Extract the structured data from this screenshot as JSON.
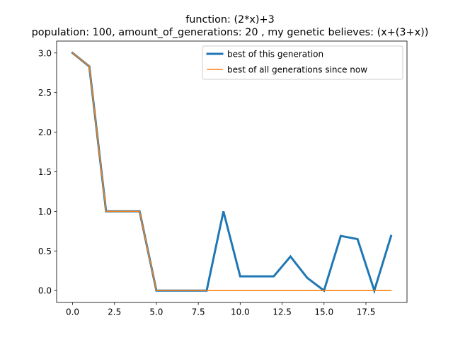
{
  "chart_data": {
    "type": "line",
    "title": "function:  (2*x)+3",
    "subtitle": "population: 100, amount_of_generations: 20 , my genetic believes: (x+(3+x))",
    "xlabel": "",
    "ylabel": "",
    "xlim": [
      -0.95,
      19.95
    ],
    "ylim": [
      -0.15,
      3.15
    ],
    "xticks": [
      0.0,
      2.5,
      5.0,
      7.5,
      10.0,
      12.5,
      15.0,
      17.5
    ],
    "xtick_labels": [
      "0.0",
      "2.5",
      "5.0",
      "7.5",
      "10.0",
      "12.5",
      "15.0",
      "17.5"
    ],
    "yticks": [
      0.0,
      0.5,
      1.0,
      1.5,
      2.0,
      2.5,
      3.0
    ],
    "ytick_labels": [
      "0.0",
      "0.5",
      "1.0",
      "1.5",
      "2.0",
      "2.5",
      "3.0"
    ],
    "grid": false,
    "legend_position": "top-right",
    "x": [
      0,
      1,
      2,
      3,
      4,
      5,
      6,
      7,
      8,
      9,
      10,
      11,
      12,
      13,
      14,
      15,
      16,
      17,
      18,
      19
    ],
    "series": [
      {
        "name": "best of this generation",
        "color": "#1f77b4",
        "style": "thick",
        "values": [
          3.0,
          2.83,
          1.0,
          1.0,
          1.0,
          0.0,
          0.0,
          0.0,
          0.0,
          1.0,
          0.18,
          0.18,
          0.18,
          0.43,
          0.16,
          0.0,
          0.69,
          0.65,
          0.0,
          0.69
        ]
      },
      {
        "name": "best of all generations since now",
        "color": "#ff7f0e",
        "style": "thin",
        "values": [
          3.0,
          2.83,
          1.0,
          1.0,
          1.0,
          0.0,
          0.0,
          0.0,
          0.0,
          0.0,
          0.0,
          0.0,
          0.0,
          0.0,
          0.0,
          0.0,
          0.0,
          0.0,
          0.0,
          0.0
        ]
      }
    ]
  }
}
